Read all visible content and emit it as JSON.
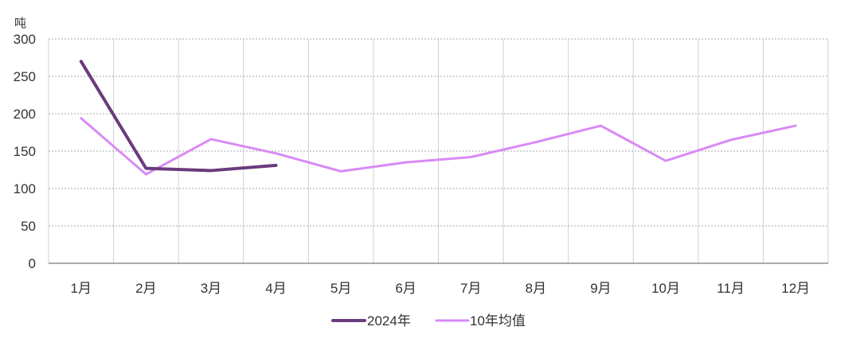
{
  "chart_data": {
    "type": "line",
    "title": "",
    "xlabel": "",
    "ylabel": "吨",
    "categories": [
      "1月",
      "2月",
      "3月",
      "4月",
      "5月",
      "6月",
      "7月",
      "8月",
      "9月",
      "10月",
      "11月",
      "12月"
    ],
    "ylim": [
      0,
      300
    ],
    "yticks": [
      "0",
      "50",
      "100",
      "150",
      "200",
      "250",
      "300"
    ],
    "grid": true,
    "legend_position": "bottom",
    "series": [
      {
        "name": "2024年",
        "color": "#6B3A7D",
        "values": [
          270,
          127,
          124,
          131,
          null,
          null,
          null,
          null,
          null,
          null,
          null,
          null
        ]
      },
      {
        "name": "10年均值",
        "color": "#D98AF5",
        "values": [
          194,
          119,
          166,
          147,
          123,
          135,
          142,
          162,
          184,
          137,
          165,
          184
        ]
      }
    ]
  }
}
